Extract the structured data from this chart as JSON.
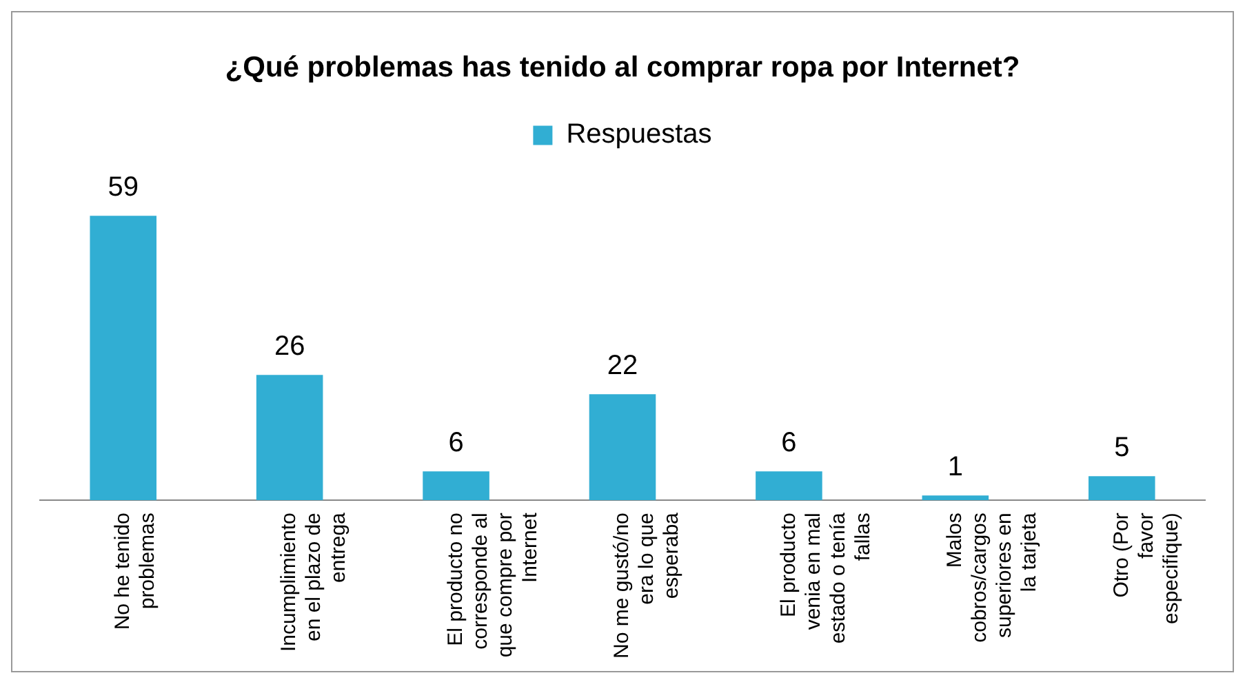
{
  "chart_data": {
    "type": "bar",
    "title": "¿Qué problemas has tenido al comprar ropa por Internet?",
    "categories": [
      "No he tenido problemas",
      "Incumplimiento en el plazo de entrega",
      "El producto no corresponde al que compre por Internet",
      "No me gustó/no era lo que esperaba",
      "El producto venia en mal estado o tenía fallas",
      "Malos cobros/cargos superiores en la tarjeta",
      "Otro (Por favor especifique)"
    ],
    "series": [
      {
        "name": "Respuestas",
        "color": "#31aed3",
        "values": [
          59,
          26,
          6,
          22,
          6,
          1,
          5
        ]
      }
    ],
    "data_labels": true,
    "legend": "top",
    "grid": false,
    "tick_labels": "x"
  }
}
